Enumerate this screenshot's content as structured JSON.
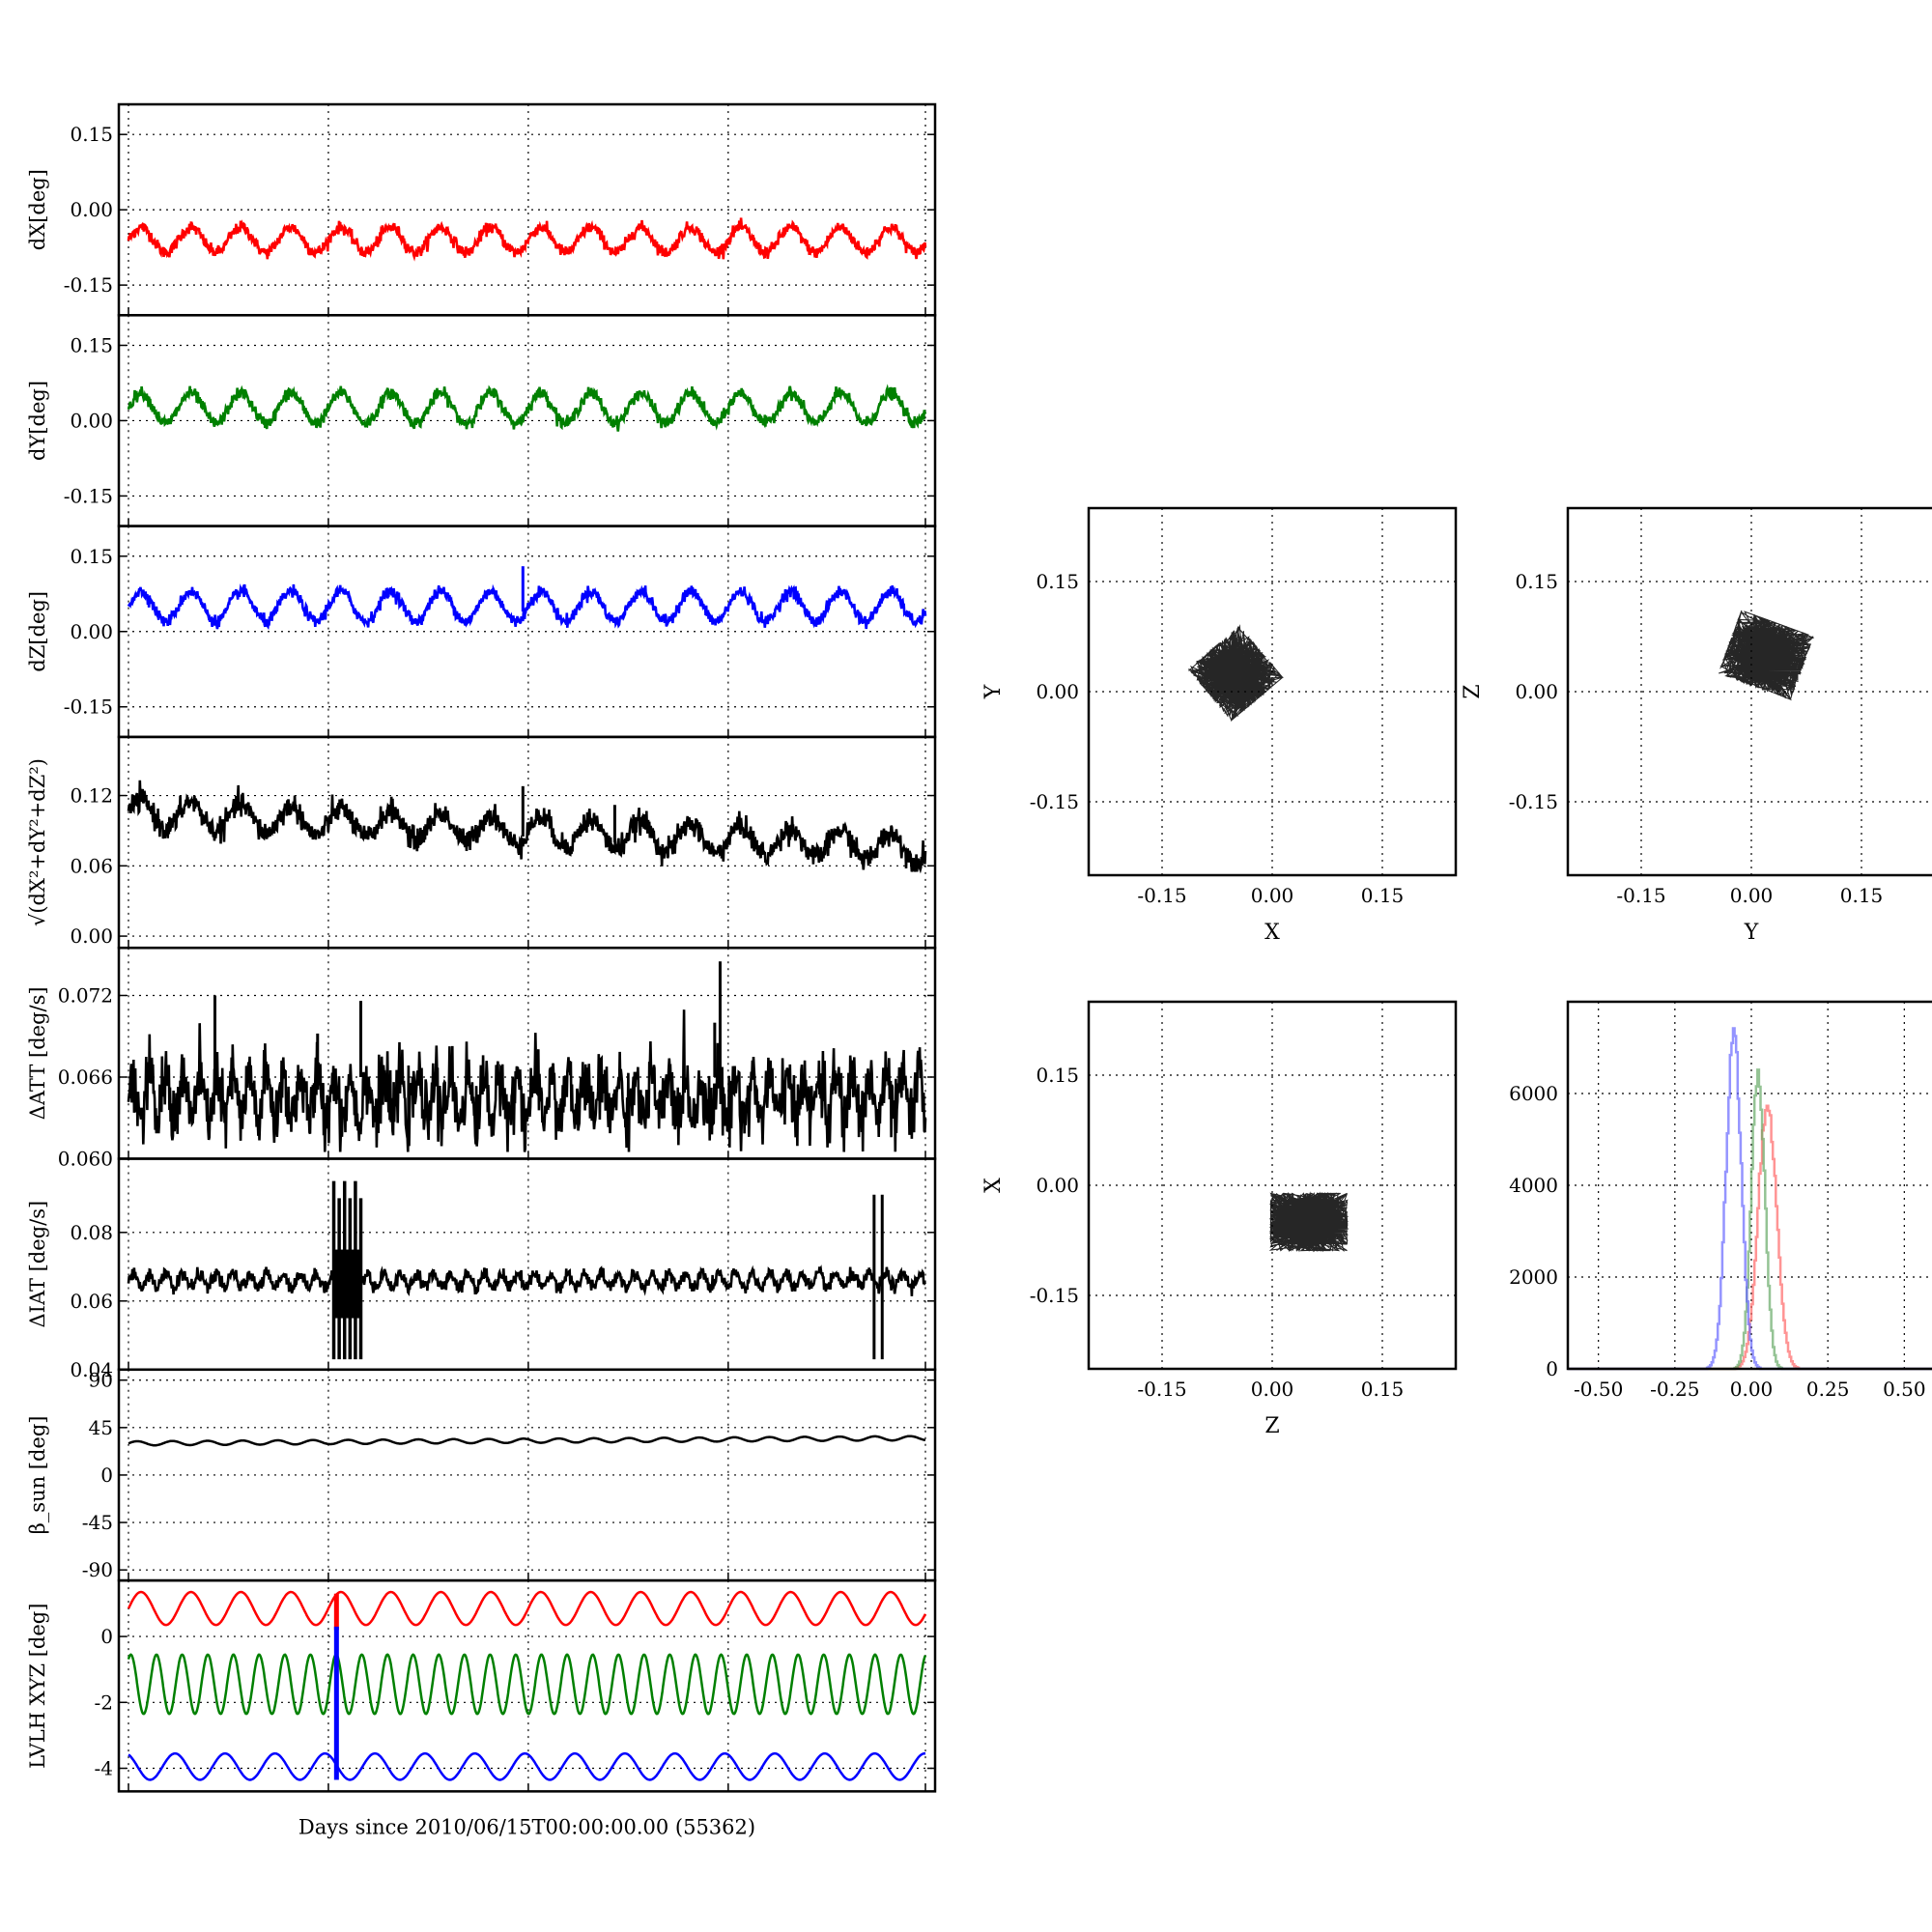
{
  "chart_data": [
    {
      "type": "line",
      "ylabel": "dX[deg]",
      "ylim": [
        -0.21,
        0.21
      ],
      "yticks": [
        "0.15",
        "0.00",
        "-0.15"
      ],
      "yticks_values": [
        0.15,
        0.0,
        -0.15
      ],
      "x_range_days": [
        0,
        29.5
      ],
      "grid": true,
      "series": [
        {
          "color": "#ff0000",
          "mean": -0.06,
          "amplitude": 0.025,
          "period_days": 1.85,
          "noise": 0.006,
          "min": -0.11,
          "max": 0.0
        }
      ]
    },
    {
      "type": "line",
      "ylabel": "dY[deg]",
      "ylim": [
        -0.21,
        0.21
      ],
      "yticks": [
        "0.15",
        "0.00",
        "-0.15"
      ],
      "yticks_values": [
        0.15,
        0.0,
        -0.15
      ],
      "x_range_days": [
        0,
        29.5
      ],
      "grid": true,
      "series": [
        {
          "color": "#008000",
          "mean": 0.025,
          "amplitude": 0.03,
          "period_days": 1.85,
          "noise": 0.006,
          "min": -0.03,
          "max": 0.09
        }
      ]
    },
    {
      "type": "line",
      "ylabel": "dZ[deg]",
      "ylim": [
        -0.21,
        0.21
      ],
      "yticks": [
        "0.15",
        "0.00",
        "-0.15"
      ],
      "yticks_values": [
        0.15,
        0.0,
        -0.15
      ],
      "x_range_days": [
        0,
        29.5
      ],
      "grid": true,
      "series": [
        {
          "color": "#0000ff",
          "mean": 0.05,
          "amplitude": 0.03,
          "period_days": 1.85,
          "noise": 0.006,
          "min": -0.02,
          "max": 0.13
        }
      ]
    },
    {
      "type": "line",
      "ylabel": "√(dX²+dY²+dZ²)",
      "ylim": [
        -0.01,
        0.17
      ],
      "yticks": [
        "0.12",
        "0.06",
        "0.00"
      ],
      "yticks_values": [
        0.12,
        0.06,
        0.0
      ],
      "x_range_days": [
        0,
        29.5
      ],
      "grid": true,
      "series": [
        {
          "color": "#000000",
          "mean_start": 0.105,
          "mean_end": 0.075,
          "amplitude": 0.012,
          "period_days": 1.85,
          "noise": 0.005,
          "min": 0.055,
          "max": 0.133
        }
      ]
    },
    {
      "type": "line",
      "ylabel": "ΔATT [deg/s]",
      "ylim": [
        0.06,
        0.0755
      ],
      "yticks": [
        "0.072",
        "0.066",
        "0.060"
      ],
      "yticks_values": [
        0.072,
        0.066,
        0.06
      ],
      "x_range_days": [
        0,
        29.5
      ],
      "grid": true,
      "series": [
        {
          "color": "#000000",
          "mean": 0.0645,
          "amplitude": 0.0015,
          "period_days": 0.62,
          "noise": 0.0012,
          "min": 0.0605,
          "max": 0.0745
        }
      ]
    },
    {
      "type": "line",
      "ylabel": "ΔIAT [deg/s]",
      "ylim": [
        0.04,
        0.1015
      ],
      "yticks": [
        "0.08",
        "0.06",
        "0.04"
      ],
      "yticks_values": [
        0.08,
        0.06,
        0.04
      ],
      "x_range_days": [
        0,
        29.5
      ],
      "grid": true,
      "series": [
        {
          "color": "#000000",
          "mean": 0.066,
          "amplitude": 0.002,
          "period_days": 0.62,
          "noise": 0.001,
          "min": 0.043,
          "max": 0.095
        }
      ]
    },
    {
      "type": "line",
      "ylabel": "β_sun [deg]",
      "ylim": [
        -100,
        100
      ],
      "yticks": [
        "90",
        "45",
        "0",
        "-45",
        "-90"
      ],
      "yticks_values": [
        90,
        45,
        0,
        -45,
        -90
      ],
      "x_range_days": [
        0,
        29.5
      ],
      "grid": true,
      "series": [
        {
          "color": "#000000",
          "mean_start": 30,
          "mean_end": 35,
          "amplitude": 2,
          "period_days": 1.3
        }
      ]
    },
    {
      "type": "line",
      "ylabel": "LVLH XYZ [deg]",
      "ylim": [
        -4.7,
        1.7
      ],
      "yticks": [
        "0",
        "-2",
        "-4"
      ],
      "yticks_values": [
        0,
        -2,
        -4
      ],
      "x_range_days": [
        0,
        29.5
      ],
      "xlabel": "Days since 2010/06/15T00:00:00.00 (55362)",
      "grid": true,
      "series": [
        {
          "color": "#ff0000",
          "mean": 0.85,
          "amplitude": 0.5,
          "period_days": 1.85
        },
        {
          "color": "#008000",
          "mean": -1.45,
          "amplitude": 0.9,
          "period_days": 0.95
        },
        {
          "color": "#0000ff",
          "mean": -3.95,
          "amplitude": 0.4,
          "period_days": 1.85
        }
      ]
    },
    {
      "type": "scatter",
      "xlabel": "X",
      "ylabel": "Y",
      "xlim": [
        -0.25,
        0.25
      ],
      "ylim": [
        -0.25,
        0.25
      ],
      "xticks": [
        "-0.15",
        "0.00",
        "0.15"
      ],
      "yticks": [
        "0.15",
        "0.00",
        "-0.15"
      ],
      "grid": true,
      "cloud": {
        "color": "#000000",
        "center": [
          -0.05,
          0.025
        ],
        "spread": [
          0.035,
          0.035
        ],
        "tilt_deg": 40
      }
    },
    {
      "type": "scatter",
      "xlabel": "Y",
      "ylabel": "Z",
      "xlim": [
        -0.25,
        0.25
      ],
      "ylim": [
        -0.25,
        0.25
      ],
      "xticks": [
        "-0.15",
        "0.00",
        "0.15"
      ],
      "yticks": [
        "0.15",
        "0.00",
        "-0.15"
      ],
      "grid": true,
      "cloud": {
        "color": "#000000",
        "center": [
          0.02,
          0.05
        ],
        "spread": [
          0.04,
          0.035
        ],
        "tilt_deg": -20
      }
    },
    {
      "type": "scatter",
      "xlabel": "Z",
      "ylabel": "X",
      "xlim": [
        -0.25,
        0.25
      ],
      "ylim": [
        -0.25,
        0.25
      ],
      "xticks": [
        "-0.15",
        "0.00",
        "0.15"
      ],
      "yticks": [
        "0.15",
        "0.00",
        "-0.15"
      ],
      "grid": true,
      "cloud": {
        "color": "#000000",
        "center": [
          0.05,
          -0.05
        ],
        "spread": [
          0.04,
          0.03
        ],
        "tilt_deg": 0
      }
    },
    {
      "type": "histogram",
      "xlim": [
        -0.6,
        0.6
      ],
      "ylim": [
        0,
        8000
      ],
      "xticks": [
        "-0.50",
        "-0.25",
        "0.00",
        "0.25",
        "0.50"
      ],
      "xticks_values": [
        -0.5,
        -0.25,
        0.0,
        0.25,
        0.5
      ],
      "yticks": [
        "6000",
        "4000",
        "2000",
        "0"
      ],
      "yticks_values": [
        6000,
        4000,
        2000,
        0
      ],
      "grid": true,
      "series": [
        {
          "color": "#ff6666",
          "center": 0.05,
          "width": 0.03,
          "peak": 5800,
          "opacity": 0.7
        },
        {
          "color": "#66aa66",
          "center": 0.02,
          "width": 0.022,
          "peak": 6500,
          "opacity": 0.7
        },
        {
          "color": "#6666ff",
          "center": -0.06,
          "width": 0.025,
          "peak": 7200,
          "opacity": 0.7
        }
      ]
    }
  ]
}
